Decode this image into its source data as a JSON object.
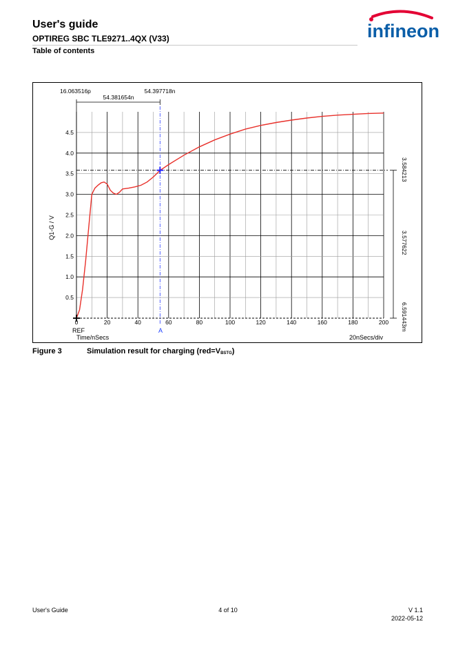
{
  "header": {
    "title": "User's guide",
    "subtitle": "OPTIREG SBC TLE9271..4QX (V33)",
    "section": "Table of contents",
    "logo_text": "infineon"
  },
  "figure": {
    "number": "Figure 3",
    "caption_prefix": "Simulation result for charging (red=V",
    "caption_sub": "BSTG",
    "caption_suffix": ")"
  },
  "chart_data": {
    "type": "line",
    "ylabel": "Q1-G / V",
    "xlabel": "Time/nSecs",
    "scale_label": "20nSecs/div",
    "x_ticks": [
      "0",
      "20",
      "40",
      "60",
      "80",
      "100",
      "120",
      "140",
      "160",
      "180",
      "200"
    ],
    "y_ticks": [
      "0.5",
      "1.0",
      "1.5",
      "2.0",
      "2.5",
      "3.0",
      "3.5",
      "4.0",
      "4.5"
    ],
    "xlim": [
      0,
      200
    ],
    "ylim": [
      0,
      5
    ],
    "grid": true,
    "cursor": {
      "ref_label": "REF",
      "marker_label": "A",
      "ref_time": "16.063516p",
      "marker_time": "54.397718n",
      "delta_time": "54.381654n",
      "marker_value": "3.584213",
      "delta_value": "3.577622",
      "ref_value": "6.591443m",
      "marker_x": 54.4,
      "marker_y": 3.584
    },
    "series": [
      {
        "color": "#e8302a",
        "x": [
          0,
          2,
          4,
          6,
          8,
          10,
          12,
          14,
          16,
          18,
          20,
          22,
          24,
          26,
          28,
          30,
          34,
          38,
          42,
          46,
          50,
          54.4,
          60,
          70,
          80,
          90,
          100,
          110,
          120,
          130,
          140,
          150,
          160,
          170,
          180,
          190,
          200
        ],
        "y": [
          0.0,
          0.2,
          0.7,
          1.4,
          2.2,
          3.0,
          3.15,
          3.22,
          3.28,
          3.3,
          3.25,
          3.1,
          3.03,
          3.0,
          3.05,
          3.13,
          3.15,
          3.18,
          3.22,
          3.3,
          3.42,
          3.58,
          3.72,
          3.95,
          4.15,
          4.32,
          4.46,
          4.58,
          4.67,
          4.74,
          4.8,
          4.85,
          4.89,
          4.92,
          4.94,
          4.96,
          4.97
        ]
      }
    ]
  },
  "footer": {
    "doc": "User's Guide",
    "page": "4 of 10",
    "version": "V 1.1",
    "date": "2022-05-12"
  }
}
